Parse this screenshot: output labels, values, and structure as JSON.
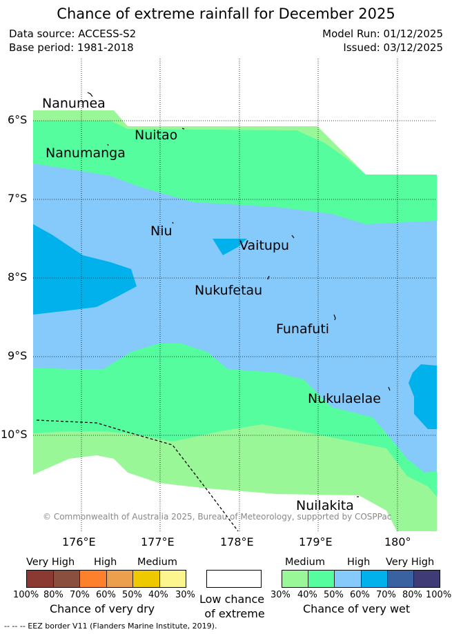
{
  "title": "Chance of extreme rainfall for December 2025",
  "data_source": "Data source: ACCESS-S2",
  "base_period": "Base period: 1981-2018",
  "model_run": "Model Run: 01/12/2025",
  "issued": "Issued: 03/12/2025",
  "copyright": "© Commonwealth of Australia 2025, Bureau of Meteorology, supported by COSPPac",
  "lon_labels": [
    "176°E",
    "177°E",
    "178°E",
    "179°E",
    "180°"
  ],
  "lat_labels": [
    "6°S",
    "7°S",
    "8°S",
    "9°S",
    "10°S"
  ],
  "islands": [
    "Nanumea",
    "Nuitao",
    "Nanumanga",
    "Niu",
    "Vaitupu",
    "Nukufetau",
    "Funafuti",
    "Nukulaelae",
    "Nuilakita"
  ],
  "legend": {
    "dry": {
      "levels": [
        "Very High",
        "High",
        "Medium"
      ],
      "ticks": [
        "100%",
        "80%",
        "70%",
        "60%",
        "50%",
        "40%",
        "30%"
      ],
      "label": "Chance of very dry",
      "colors": [
        "#8b3a33",
        "#8b4f3f",
        "#fe7f2c",
        "#ec9f4d",
        "#eec900",
        "#fdf68f"
      ]
    },
    "low": {
      "label1": "Low chance",
      "label2": "of extreme",
      "color": "#ffffff"
    },
    "wet": {
      "levels": [
        "Medium",
        "High",
        "Very High"
      ],
      "ticks": [
        "30%",
        "40%",
        "50%",
        "60%",
        "70%",
        "80%",
        "100%"
      ],
      "label": "Chance of very wet",
      "colors": [
        "#99f797",
        "#55fd9e",
        "#86c9fb",
        "#00b1ec",
        "#3a62a0",
        "#3e3b77"
      ]
    }
  },
  "eez_note": "--  --  -- EEZ border V11 (Flanders Marine Institute, 2019)."
}
